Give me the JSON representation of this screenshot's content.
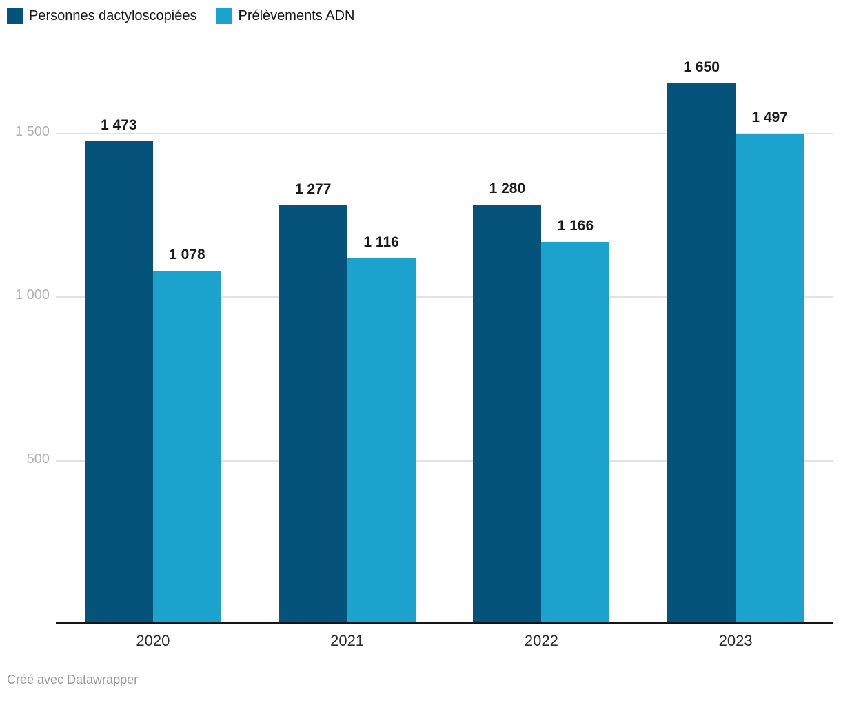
{
  "legend": {
    "items": [
      {
        "label": "Personnes dactyloscopiées",
        "color": "#05537a"
      },
      {
        "label": "Prélèvements ADN",
        "color": "#1ba3cd"
      }
    ]
  },
  "chart_data": {
    "type": "bar",
    "categories": [
      "2020",
      "2021",
      "2022",
      "2023"
    ],
    "series": [
      {
        "name": "Personnes dactyloscopiées",
        "color": "#05537a",
        "values": [
          1473,
          1277,
          1280,
          1650
        ],
        "value_labels": [
          "1 473",
          "1 277",
          "1 280",
          "1 650"
        ]
      },
      {
        "name": "Prélèvements ADN",
        "color": "#1ba3cd",
        "values": [
          1078,
          1116,
          1166,
          1497
        ],
        "value_labels": [
          "1 078",
          "1 116",
          "1 166",
          "1 497"
        ]
      }
    ],
    "yticks": [
      {
        "value": 1500,
        "label": "1 500"
      },
      {
        "value": 1000,
        "label": "1 000"
      },
      {
        "value": 500,
        "label": "500"
      }
    ],
    "ylim": [
      0,
      1700
    ],
    "grid": "horizontal",
    "legend_position": "top-left",
    "title": "",
    "xlabel": "",
    "ylabel": ""
  },
  "footer": {
    "credit": "Créé avec Datawrapper"
  }
}
